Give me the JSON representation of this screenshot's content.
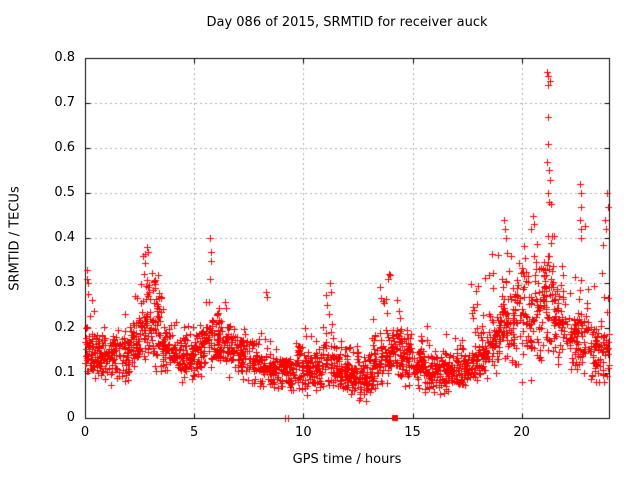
{
  "window": {
    "background": "#ffffff"
  },
  "chart_data": {
    "type": "scatter",
    "title": "Day 086 of 2015, SRMTID for receiver auck",
    "xlabel": "GPS time / hours",
    "ylabel": "SRMTID / TECUs",
    "xlim": [
      0,
      24
    ],
    "ylim": [
      0,
      0.8
    ],
    "xticks": {
      "values": [
        0,
        5,
        10,
        15,
        20
      ],
      "labels": [
        "0",
        "5",
        "10",
        "15",
        "20"
      ]
    },
    "yticks": {
      "values": [
        0,
        0.1,
        0.2,
        0.3,
        0.4,
        0.5,
        0.6,
        0.7,
        0.8
      ],
      "labels": [
        "0",
        "0.1",
        "0.2",
        "0.3",
        "0.4",
        "0.5",
        "0.6",
        "0.7",
        "0.8"
      ]
    },
    "grid": true,
    "grid_style": "dashed",
    "legend": null,
    "marker": "plus",
    "colors": {
      "points": "#ff0000",
      "grid": "#b0b0b0",
      "frame": "#000000",
      "text": "#000000"
    },
    "density_bins": {
      "note": "dense +-marker band summarized per 0.5 h bin",
      "start_hour": 0,
      "bin_width_hours": 0.5,
      "fields": [
        "count",
        "y_min",
        "y_typical",
        "y_max"
      ],
      "bins": [
        [
          55,
          0.09,
          0.14,
          0.3
        ],
        [
          50,
          0.08,
          0.13,
          0.22
        ],
        [
          50,
          0.07,
          0.13,
          0.2
        ],
        [
          48,
          0.08,
          0.14,
          0.25
        ],
        [
          50,
          0.1,
          0.16,
          0.3
        ],
        [
          55,
          0.12,
          0.2,
          0.37
        ],
        [
          55,
          0.1,
          0.21,
          0.33
        ],
        [
          48,
          0.09,
          0.15,
          0.26
        ],
        [
          46,
          0.08,
          0.13,
          0.22
        ],
        [
          46,
          0.08,
          0.14,
          0.26
        ],
        [
          46,
          0.09,
          0.15,
          0.25
        ],
        [
          42,
          0.1,
          0.16,
          0.28
        ],
        [
          50,
          0.1,
          0.17,
          0.28
        ],
        [
          46,
          0.09,
          0.15,
          0.24
        ],
        [
          46,
          0.08,
          0.13,
          0.2
        ],
        [
          42,
          0.07,
          0.12,
          0.18
        ],
        [
          46,
          0.07,
          0.11,
          0.24
        ],
        [
          42,
          0.06,
          0.1,
          0.16
        ],
        [
          42,
          0.06,
          0.1,
          0.15
        ],
        [
          46,
          0.06,
          0.11,
          0.17
        ],
        [
          46,
          0.05,
          0.1,
          0.2
        ],
        [
          46,
          0.06,
          0.11,
          0.24
        ],
        [
          46,
          0.06,
          0.12,
          0.28
        ],
        [
          46,
          0.05,
          0.1,
          0.18
        ],
        [
          46,
          0.035,
          0.09,
          0.16
        ],
        [
          46,
          0.035,
          0.09,
          0.15
        ],
        [
          46,
          0.05,
          0.1,
          0.22
        ],
        [
          50,
          0.07,
          0.13,
          0.32
        ],
        [
          50,
          0.08,
          0.15,
          0.32
        ],
        [
          46,
          0.07,
          0.13,
          0.25
        ],
        [
          46,
          0.06,
          0.11,
          0.2
        ],
        [
          46,
          0.05,
          0.1,
          0.22
        ],
        [
          46,
          0.05,
          0.1,
          0.17
        ],
        [
          46,
          0.06,
          0.1,
          0.2
        ],
        [
          46,
          0.06,
          0.11,
          0.22
        ],
        [
          46,
          0.07,
          0.12,
          0.3
        ],
        [
          46,
          0.08,
          0.14,
          0.33
        ],
        [
          50,
          0.1,
          0.17,
          0.38
        ],
        [
          50,
          0.12,
          0.21,
          0.4
        ],
        [
          46,
          0.12,
          0.21,
          0.37
        ],
        [
          46,
          0.08,
          0.2,
          0.4
        ],
        [
          46,
          0.13,
          0.24,
          0.44
        ],
        [
          55,
          0.15,
          0.27,
          0.52
        ],
        [
          46,
          0.12,
          0.21,
          0.42
        ],
        [
          42,
          0.1,
          0.17,
          0.33
        ],
        [
          46,
          0.1,
          0.18,
          0.45
        ],
        [
          46,
          0.08,
          0.15,
          0.3
        ],
        [
          40,
          0.08,
          0.15,
          0.4
        ]
      ]
    },
    "outlier_points": [
      [
        0.1,
        0.33
      ],
      [
        0.1,
        0.31
      ],
      [
        0.14,
        0.3
      ],
      [
        2.85,
        0.38
      ],
      [
        2.9,
        0.37
      ],
      [
        5.72,
        0.4
      ],
      [
        5.75,
        0.37
      ],
      [
        5.78,
        0.35
      ],
      [
        5.73,
        0.31
      ],
      [
        8.3,
        0.28
      ],
      [
        8.35,
        0.27
      ],
      [
        11.2,
        0.3
      ],
      [
        11.25,
        0.28
      ],
      [
        13.9,
        0.31
      ],
      [
        19.2,
        0.44
      ],
      [
        19.25,
        0.42
      ],
      [
        19.3,
        0.4
      ],
      [
        20.45,
        0.42
      ],
      [
        20.5,
        0.45
      ],
      [
        21.18,
        0.77
      ],
      [
        21.22,
        0.76
      ],
      [
        21.2,
        0.74
      ],
      [
        21.28,
        0.75
      ],
      [
        21.2,
        0.67
      ],
      [
        21.21,
        0.61
      ],
      [
        21.15,
        0.57
      ],
      [
        21.24,
        0.55
      ],
      [
        21.3,
        0.53
      ],
      [
        21.19,
        0.5
      ],
      [
        21.26,
        0.48
      ],
      [
        22.68,
        0.52
      ],
      [
        22.72,
        0.5
      ],
      [
        22.7,
        0.47
      ],
      [
        22.66,
        0.44
      ],
      [
        22.74,
        0.42
      ],
      [
        22.7,
        0.4
      ],
      [
        23.8,
        0.44
      ],
      [
        23.88,
        0.42
      ],
      [
        23.92,
        0.5
      ],
      [
        23.95,
        0.47
      ]
    ],
    "baseline_markers": {
      "plus_points": [
        [
          9.15,
          0
        ],
        [
          9.28,
          0
        ]
      ],
      "square_points": [
        [
          14.2,
          0
        ]
      ]
    }
  }
}
